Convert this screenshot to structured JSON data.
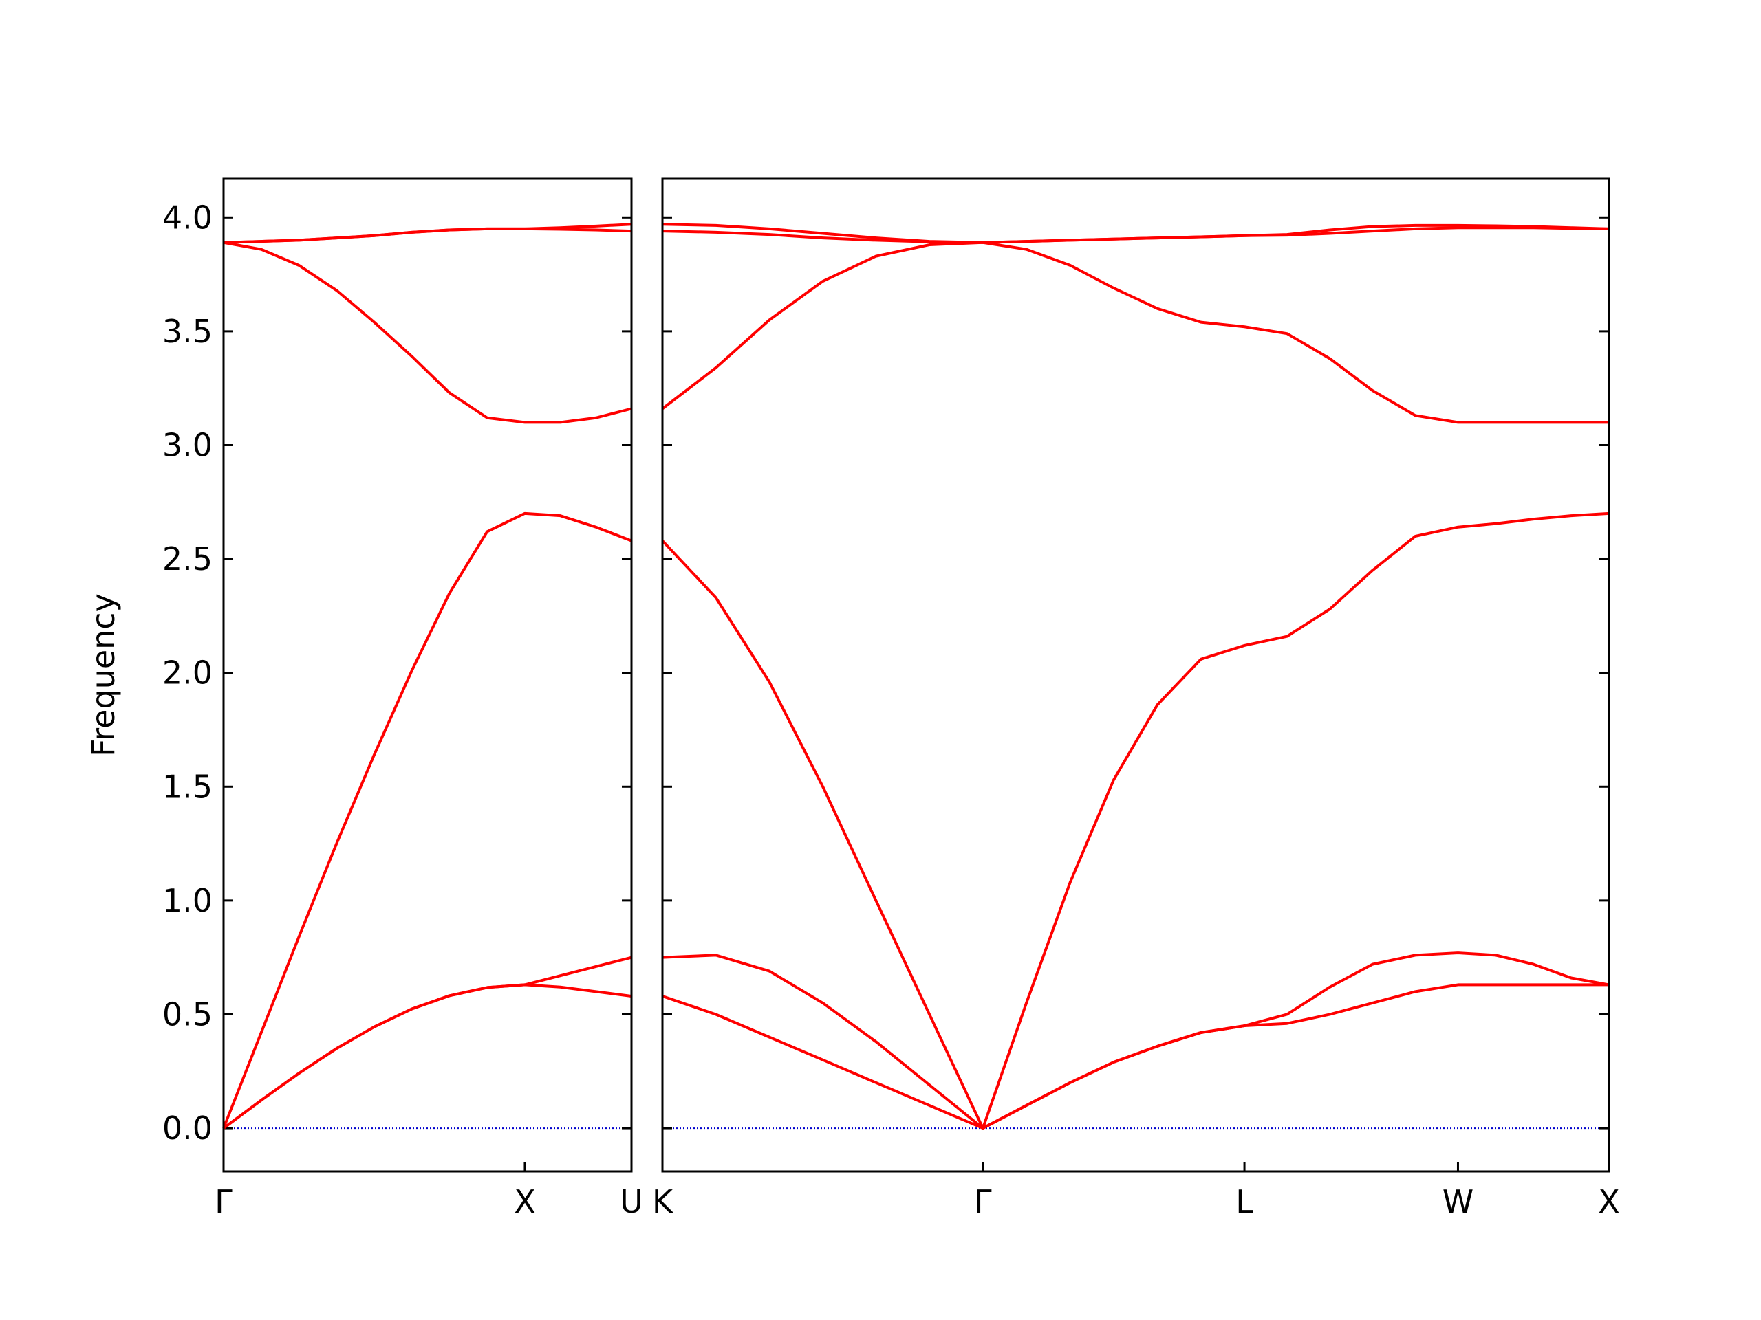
{
  "chart_data": [
    {
      "type": "line",
      "ylabel": "Frequency",
      "show_ytick_labels": true,
      "zero_line_color": "#0000cc",
      "x": [
        0,
        0.125,
        0.25,
        0.375,
        0.5,
        0.625,
        0.75,
        0.875,
        1.0,
        1.118,
        1.236,
        1.354
      ],
      "xlim": [
        0,
        1.354
      ],
      "xticks": [
        {
          "value": 0,
          "label": "Γ"
        },
        {
          "value": 1.0,
          "label": "X"
        },
        {
          "value": 1.354,
          "label": "U"
        }
      ],
      "ylim": [
        -0.19,
        4.17
      ],
      "yticks": [
        {
          "value": 0,
          "label": "0.0"
        },
        0.5,
        {
          "value": 1,
          "label": "1.0"
        },
        1.5,
        {
          "value": 2,
          "label": "2.0"
        },
        2.5,
        {
          "value": 3,
          "label": "3.0"
        },
        3.5,
        {
          "value": 4,
          "label": "4.0"
        }
      ],
      "series": [
        {
          "color": "#ff0000",
          "values": [
            0,
            0.123,
            0.241,
            0.35,
            0.445,
            0.524,
            0.582,
            0.618,
            0.63,
            0.62,
            0.6,
            0.58
          ]
        },
        {
          "color": "#ff0000",
          "values": [
            0,
            0.123,
            0.241,
            0.35,
            0.445,
            0.524,
            0.582,
            0.618,
            0.63,
            0.67,
            0.71,
            0.75
          ]
        },
        {
          "color": "#ff0000",
          "values": [
            0,
            0.42,
            0.84,
            1.25,
            1.64,
            2.01,
            2.35,
            2.62,
            2.7,
            2.69,
            2.64,
            2.58
          ]
        },
        {
          "color": "#ff0000",
          "values": [
            3.89,
            3.86,
            3.79,
            3.68,
            3.54,
            3.39,
            3.23,
            3.12,
            3.1,
            3.1,
            3.12,
            3.16
          ]
        },
        {
          "color": "#ff0000",
          "values": [
            3.89,
            3.895,
            3.9,
            3.91,
            3.92,
            3.935,
            3.945,
            3.95,
            3.95,
            3.948,
            3.945,
            3.94
          ]
        },
        {
          "color": "#ff0000",
          "values": [
            3.89,
            3.895,
            3.9,
            3.91,
            3.92,
            3.935,
            3.945,
            3.95,
            3.95,
            3.955,
            3.962,
            3.97
          ]
        }
      ]
    },
    {
      "type": "line",
      "show_ytick_labels": false,
      "zero_line_color": "#0000cc",
      "x": [
        0,
        0.177,
        0.354,
        0.531,
        0.707,
        0.884,
        1.061,
        1.205,
        1.35,
        1.494,
        1.639,
        1.783,
        1.927,
        2.068,
        2.21,
        2.351,
        2.493,
        2.634,
        2.759,
        2.884,
        3.009,
        3.134
      ],
      "xlim": [
        0,
        3.134
      ],
      "xticks": [
        {
          "value": 0,
          "label": "K"
        },
        {
          "value": 1.061,
          "label": "Γ"
        },
        {
          "value": 1.927,
          "label": "L"
        },
        {
          "value": 2.634,
          "label": "W"
        },
        {
          "value": 3.134,
          "label": "X"
        }
      ],
      "ylim": [
        -0.19,
        4.17
      ],
      "yticks": [
        0,
        0.5,
        1,
        1.5,
        2,
        2.5,
        3,
        3.5,
        4
      ],
      "series": [
        {
          "color": "#ff0000",
          "values": [
            0.58,
            0.5,
            0.4,
            0.3,
            0.2,
            0.1,
            0,
            0.1,
            0.2,
            0.29,
            0.36,
            0.42,
            0.45,
            0.46,
            0.5,
            0.55,
            0.6,
            0.63,
            0.63,
            0.63,
            0.63,
            0.63
          ]
        },
        {
          "color": "#ff0000",
          "values": [
            0.75,
            0.76,
            0.69,
            0.55,
            0.38,
            0.19,
            0,
            0.1,
            0.2,
            0.29,
            0.36,
            0.42,
            0.45,
            0.5,
            0.62,
            0.72,
            0.76,
            0.77,
            0.76,
            0.72,
            0.66,
            0.63
          ]
        },
        {
          "color": "#ff0000",
          "values": [
            2.58,
            2.33,
            1.96,
            1.5,
            1.0,
            0.5,
            0,
            0.55,
            1.08,
            1.53,
            1.86,
            2.06,
            2.12,
            2.16,
            2.28,
            2.45,
            2.6,
            2.64,
            2.655,
            2.675,
            2.69,
            2.7
          ]
        },
        {
          "color": "#ff0000",
          "values": [
            3.16,
            3.34,
            3.55,
            3.72,
            3.83,
            3.88,
            3.89,
            3.86,
            3.79,
            3.69,
            3.6,
            3.54,
            3.52,
            3.49,
            3.38,
            3.24,
            3.13,
            3.1,
            3.1,
            3.1,
            3.1,
            3.1
          ]
        },
        {
          "color": "#ff0000",
          "values": [
            3.94,
            3.935,
            3.925,
            3.91,
            3.9,
            3.893,
            3.89,
            3.895,
            3.9,
            3.905,
            3.91,
            3.915,
            3.92,
            3.922,
            3.93,
            3.94,
            3.95,
            3.955,
            3.955,
            3.955,
            3.952,
            3.95
          ]
        },
        {
          "color": "#ff0000",
          "values": [
            3.97,
            3.965,
            3.95,
            3.93,
            3.91,
            3.895,
            3.89,
            3.895,
            3.9,
            3.905,
            3.91,
            3.915,
            3.92,
            3.925,
            3.945,
            3.96,
            3.965,
            3.965,
            3.963,
            3.96,
            3.955,
            3.95
          ]
        }
      ]
    }
  ]
}
